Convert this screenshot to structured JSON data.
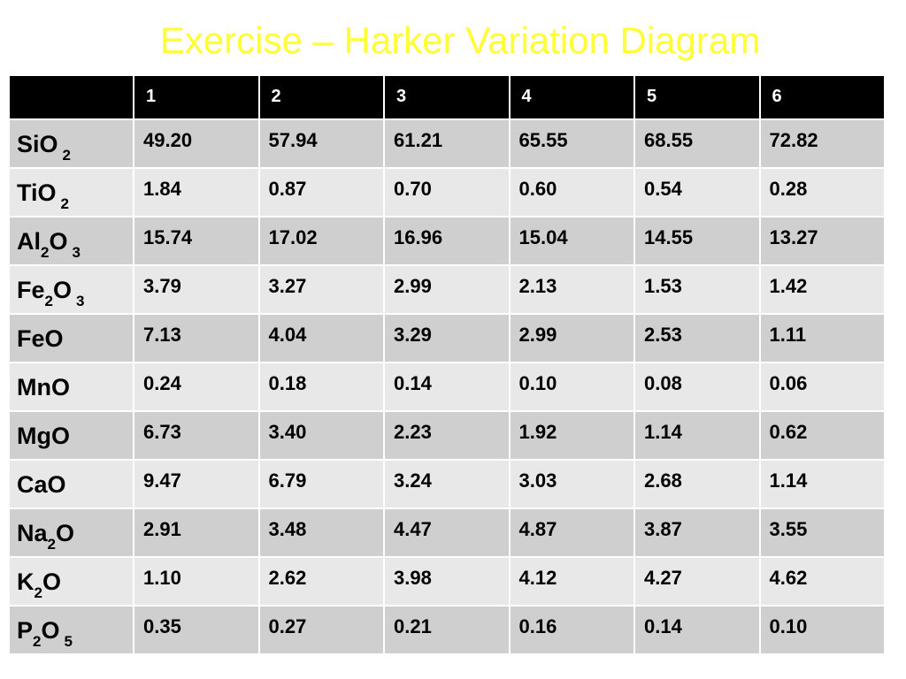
{
  "title": "Exercise – Harker Variation Diagram",
  "table": {
    "columns": [
      "",
      "1",
      "2",
      "3",
      "4",
      "5",
      "6"
    ],
    "rows": [
      {
        "base": "SiO",
        "mid": "",
        "mid_sub": "",
        "end": "",
        "end_sub": "2",
        "values": [
          "49.20",
          "57.94",
          "61.21",
          "65.55",
          "68.55",
          "72.82"
        ]
      },
      {
        "base": "TiO",
        "mid": "",
        "mid_sub": "",
        "end": "",
        "end_sub": "2",
        "values": [
          "1.84",
          "0.87",
          "0.70",
          "0.60",
          "0.54",
          "0.28"
        ]
      },
      {
        "base": "Al",
        "mid": "O",
        "mid_sub": "2",
        "end": "",
        "end_sub": "3",
        "values": [
          "15.74",
          "17.02",
          "16.96",
          "15.04",
          "14.55",
          "13.27"
        ]
      },
      {
        "base": "Fe",
        "mid": "O",
        "mid_sub": "2",
        "end": "",
        "end_sub": "3",
        "values": [
          "3.79",
          "3.27",
          "2.99",
          "2.13",
          "1.53",
          "1.42"
        ]
      },
      {
        "base": "FeO",
        "mid": "",
        "mid_sub": "",
        "end": "",
        "end_sub": "",
        "values": [
          "7.13",
          "4.04",
          "3.29",
          "2.99",
          "2.53",
          "1.11"
        ]
      },
      {
        "base": "MnO",
        "mid": "",
        "mid_sub": "",
        "end": "",
        "end_sub": "",
        "values": [
          "0.24",
          "0.18",
          "0.14",
          "0.10",
          "0.08",
          "0.06"
        ]
      },
      {
        "base": "MgO",
        "mid": "",
        "mid_sub": "",
        "end": "",
        "end_sub": "",
        "values": [
          "6.73",
          "3.40",
          "2.23",
          "1.92",
          "1.14",
          "0.62"
        ]
      },
      {
        "base": "CaO",
        "mid": "",
        "mid_sub": "",
        "end": "",
        "end_sub": "",
        "values": [
          "9.47",
          "6.79",
          "3.24",
          "3.03",
          "2.68",
          "1.14"
        ]
      },
      {
        "base": "Na",
        "mid": "O",
        "mid_sub": "2",
        "end": "",
        "end_sub": "",
        "values": [
          "2.91",
          "3.48",
          "4.47",
          "4.87",
          "3.87",
          "3.55"
        ]
      },
      {
        "base": "K",
        "mid": "O",
        "mid_sub": "2",
        "end": "",
        "end_sub": "",
        "values": [
          "1.10",
          "2.62",
          "3.98",
          "4.12",
          "4.27",
          "4.62"
        ]
      },
      {
        "base": "P",
        "mid": "O",
        "mid_sub": "2",
        "end": "",
        "end_sub": "5",
        "values": [
          "0.35",
          "0.27",
          "0.21",
          "0.16",
          "0.14",
          "0.10"
        ]
      }
    ]
  },
  "colors": {
    "title": "#ffff33",
    "header_bg": "#000000",
    "header_text": "#ffffff",
    "row_odd": "#cfcfcf",
    "row_even": "#e8e8e8"
  }
}
